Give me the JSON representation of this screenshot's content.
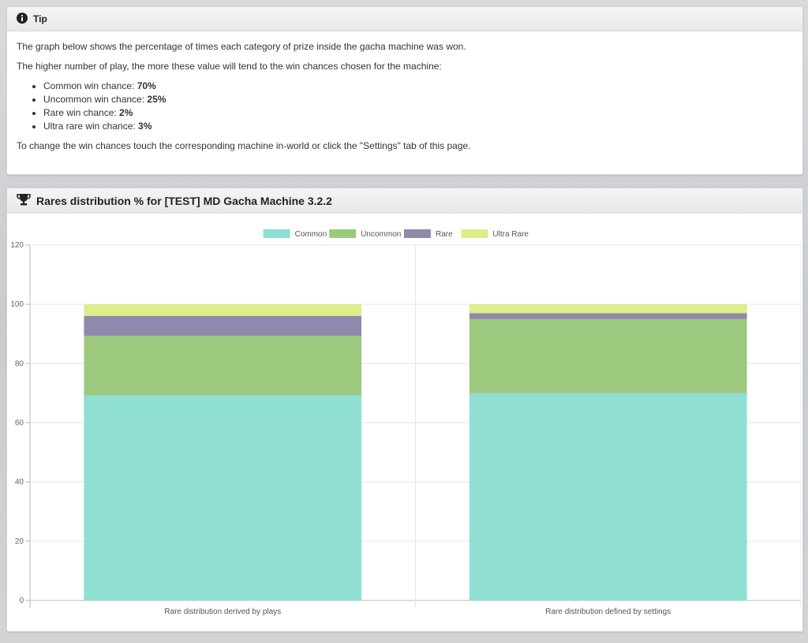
{
  "tip": {
    "title": "Tip",
    "line1": "The graph below shows the percentage of times each category of prize inside the gacha machine was won.",
    "line2": "The higher number of play, the more these value will tend to the win chances chosen for the machine:",
    "chances": [
      {
        "label": "Common win chance: ",
        "value": "70%"
      },
      {
        "label": "Uncommon win chance: ",
        "value": "25%"
      },
      {
        "label": "Rare win chance: ",
        "value": "2%"
      },
      {
        "label": "Ultra rare win chance: ",
        "value": "3%"
      }
    ],
    "line3": "To change the win chances touch the corresponding machine in-world or click the \"Settings\" tab of this page."
  },
  "chart_panel": {
    "title": "Rares distribution % for [TEST] MD Gacha Machine 3.2.2"
  },
  "icons": {
    "tip": "info-icon",
    "chart": "trophy-icon"
  },
  "chart_data": {
    "type": "bar",
    "stacked": true,
    "categories": [
      "Rare distribution derived by plays",
      "Rare distribution defined by settings"
    ],
    "series": [
      {
        "name": "Common",
        "values": [
          69.3,
          70
        ],
        "color": "#8fdfd3"
      },
      {
        "name": "Uncommon",
        "values": [
          20.1,
          25
        ],
        "color": "#9cc97e"
      },
      {
        "name": "Rare",
        "values": [
          6.7,
          2
        ],
        "color": "#9189ab"
      },
      {
        "name": "Ultra Rare",
        "values": [
          3.9,
          3
        ],
        "color": "#dded8a"
      }
    ],
    "ylim": [
      0,
      120
    ],
    "yticks": [
      0,
      20,
      40,
      60,
      80,
      100,
      120
    ],
    "grid": true,
    "legend": "top-center"
  }
}
